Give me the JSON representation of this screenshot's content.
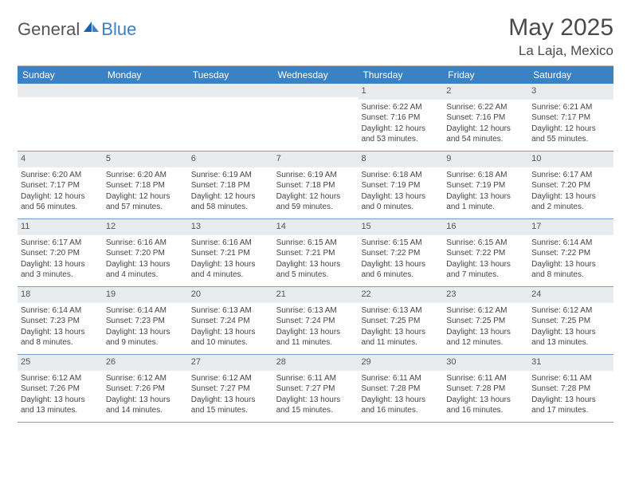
{
  "brand": {
    "name1": "General",
    "name2": "Blue"
  },
  "title": {
    "month": "May 2025",
    "location": "La Laja, Mexico"
  },
  "colors": {
    "header_bg": "#3b82c4",
    "header_text": "#ffffff",
    "daynum_bg": "#e9ecee",
    "week_border": "#7a9cc6",
    "text": "#444444",
    "title_text": "#4a4a4a",
    "logo_gray": "#555555",
    "logo_blue": "#3b7fc4"
  },
  "day_names": [
    "Sunday",
    "Monday",
    "Tuesday",
    "Wednesday",
    "Thursday",
    "Friday",
    "Saturday"
  ],
  "weeks": [
    [
      {
        "n": "",
        "lines": []
      },
      {
        "n": "",
        "lines": []
      },
      {
        "n": "",
        "lines": []
      },
      {
        "n": "",
        "lines": []
      },
      {
        "n": "1",
        "lines": [
          "Sunrise: 6:22 AM",
          "Sunset: 7:16 PM",
          "Daylight: 12 hours",
          "and 53 minutes."
        ]
      },
      {
        "n": "2",
        "lines": [
          "Sunrise: 6:22 AM",
          "Sunset: 7:16 PM",
          "Daylight: 12 hours",
          "and 54 minutes."
        ]
      },
      {
        "n": "3",
        "lines": [
          "Sunrise: 6:21 AM",
          "Sunset: 7:17 PM",
          "Daylight: 12 hours",
          "and 55 minutes."
        ]
      }
    ],
    [
      {
        "n": "4",
        "lines": [
          "Sunrise: 6:20 AM",
          "Sunset: 7:17 PM",
          "Daylight: 12 hours",
          "and 56 minutes."
        ]
      },
      {
        "n": "5",
        "lines": [
          "Sunrise: 6:20 AM",
          "Sunset: 7:18 PM",
          "Daylight: 12 hours",
          "and 57 minutes."
        ]
      },
      {
        "n": "6",
        "lines": [
          "Sunrise: 6:19 AM",
          "Sunset: 7:18 PM",
          "Daylight: 12 hours",
          "and 58 minutes."
        ]
      },
      {
        "n": "7",
        "lines": [
          "Sunrise: 6:19 AM",
          "Sunset: 7:18 PM",
          "Daylight: 12 hours",
          "and 59 minutes."
        ]
      },
      {
        "n": "8",
        "lines": [
          "Sunrise: 6:18 AM",
          "Sunset: 7:19 PM",
          "Daylight: 13 hours",
          "and 0 minutes."
        ]
      },
      {
        "n": "9",
        "lines": [
          "Sunrise: 6:18 AM",
          "Sunset: 7:19 PM",
          "Daylight: 13 hours",
          "and 1 minute."
        ]
      },
      {
        "n": "10",
        "lines": [
          "Sunrise: 6:17 AM",
          "Sunset: 7:20 PM",
          "Daylight: 13 hours",
          "and 2 minutes."
        ]
      }
    ],
    [
      {
        "n": "11",
        "lines": [
          "Sunrise: 6:17 AM",
          "Sunset: 7:20 PM",
          "Daylight: 13 hours",
          "and 3 minutes."
        ]
      },
      {
        "n": "12",
        "lines": [
          "Sunrise: 6:16 AM",
          "Sunset: 7:20 PM",
          "Daylight: 13 hours",
          "and 4 minutes."
        ]
      },
      {
        "n": "13",
        "lines": [
          "Sunrise: 6:16 AM",
          "Sunset: 7:21 PM",
          "Daylight: 13 hours",
          "and 4 minutes."
        ]
      },
      {
        "n": "14",
        "lines": [
          "Sunrise: 6:15 AM",
          "Sunset: 7:21 PM",
          "Daylight: 13 hours",
          "and 5 minutes."
        ]
      },
      {
        "n": "15",
        "lines": [
          "Sunrise: 6:15 AM",
          "Sunset: 7:22 PM",
          "Daylight: 13 hours",
          "and 6 minutes."
        ]
      },
      {
        "n": "16",
        "lines": [
          "Sunrise: 6:15 AM",
          "Sunset: 7:22 PM",
          "Daylight: 13 hours",
          "and 7 minutes."
        ]
      },
      {
        "n": "17",
        "lines": [
          "Sunrise: 6:14 AM",
          "Sunset: 7:22 PM",
          "Daylight: 13 hours",
          "and 8 minutes."
        ]
      }
    ],
    [
      {
        "n": "18",
        "lines": [
          "Sunrise: 6:14 AM",
          "Sunset: 7:23 PM",
          "Daylight: 13 hours",
          "and 8 minutes."
        ]
      },
      {
        "n": "19",
        "lines": [
          "Sunrise: 6:14 AM",
          "Sunset: 7:23 PM",
          "Daylight: 13 hours",
          "and 9 minutes."
        ]
      },
      {
        "n": "20",
        "lines": [
          "Sunrise: 6:13 AM",
          "Sunset: 7:24 PM",
          "Daylight: 13 hours",
          "and 10 minutes."
        ]
      },
      {
        "n": "21",
        "lines": [
          "Sunrise: 6:13 AM",
          "Sunset: 7:24 PM",
          "Daylight: 13 hours",
          "and 11 minutes."
        ]
      },
      {
        "n": "22",
        "lines": [
          "Sunrise: 6:13 AM",
          "Sunset: 7:25 PM",
          "Daylight: 13 hours",
          "and 11 minutes."
        ]
      },
      {
        "n": "23",
        "lines": [
          "Sunrise: 6:12 AM",
          "Sunset: 7:25 PM",
          "Daylight: 13 hours",
          "and 12 minutes."
        ]
      },
      {
        "n": "24",
        "lines": [
          "Sunrise: 6:12 AM",
          "Sunset: 7:25 PM",
          "Daylight: 13 hours",
          "and 13 minutes."
        ]
      }
    ],
    [
      {
        "n": "25",
        "lines": [
          "Sunrise: 6:12 AM",
          "Sunset: 7:26 PM",
          "Daylight: 13 hours",
          "and 13 minutes."
        ]
      },
      {
        "n": "26",
        "lines": [
          "Sunrise: 6:12 AM",
          "Sunset: 7:26 PM",
          "Daylight: 13 hours",
          "and 14 minutes."
        ]
      },
      {
        "n": "27",
        "lines": [
          "Sunrise: 6:12 AM",
          "Sunset: 7:27 PM",
          "Daylight: 13 hours",
          "and 15 minutes."
        ]
      },
      {
        "n": "28",
        "lines": [
          "Sunrise: 6:11 AM",
          "Sunset: 7:27 PM",
          "Daylight: 13 hours",
          "and 15 minutes."
        ]
      },
      {
        "n": "29",
        "lines": [
          "Sunrise: 6:11 AM",
          "Sunset: 7:28 PM",
          "Daylight: 13 hours",
          "and 16 minutes."
        ]
      },
      {
        "n": "30",
        "lines": [
          "Sunrise: 6:11 AM",
          "Sunset: 7:28 PM",
          "Daylight: 13 hours",
          "and 16 minutes."
        ]
      },
      {
        "n": "31",
        "lines": [
          "Sunrise: 6:11 AM",
          "Sunset: 7:28 PM",
          "Daylight: 13 hours",
          "and 17 minutes."
        ]
      }
    ]
  ]
}
